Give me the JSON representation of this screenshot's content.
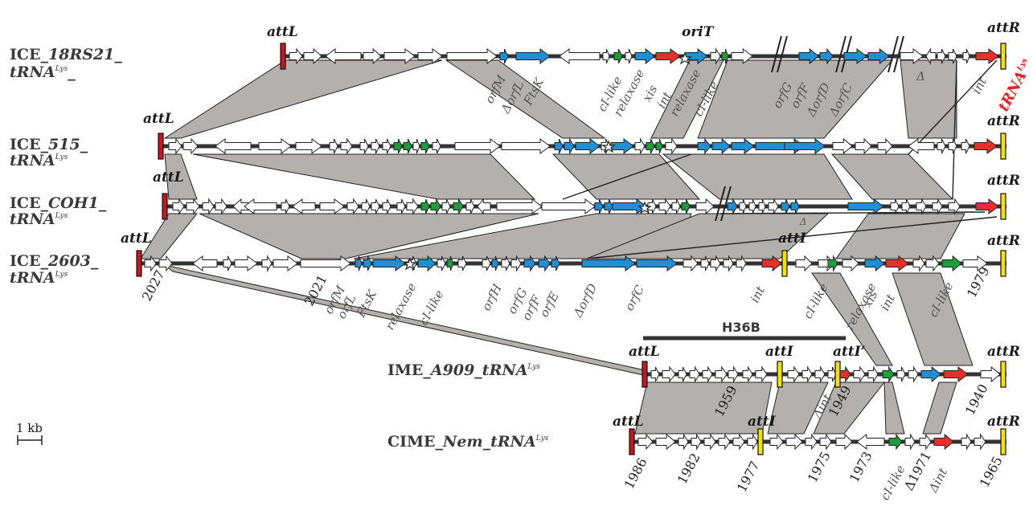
{
  "colors": {
    "blue": "#1f8fd6",
    "red": "#e8302a",
    "green": "#1e9e3a",
    "gray_band": "#b3b0ae",
    "yellow": "#f2e20a",
    "att_red": "#c4171e"
  },
  "elements": [
    {
      "id": "ice18",
      "name": "ICE_",
      "italic": "18RS21",
      "tail": "_",
      "line2": "tRNA",
      "sup": "Lys"
    },
    {
      "id": "ice515",
      "name": "ICE_",
      "italic": "515",
      "tail": "_",
      "line2": "tRNA",
      "sup": "Lys"
    },
    {
      "id": "icecoh1",
      "name": "ICE_",
      "italic": "COH1",
      "tail": "_",
      "line2": "tRNA",
      "sup": "Lys"
    },
    {
      "id": "ice2603",
      "name": "ICE_",
      "italic": "2603",
      "tail": "_",
      "line2": "tRNA",
      "sup": "Lys"
    },
    {
      "id": "imea909",
      "name": "IME_",
      "italic": "A909_tRNA",
      "tail": "",
      "line2": "",
      "sup": "Lys"
    },
    {
      "id": "cimenem",
      "name": "CIME_",
      "italic": "Nem_tRNA",
      "tail": "",
      "line2": "",
      "sup": "Lys"
    }
  ],
  "sites": {
    "attL": "attL",
    "attR": "attR",
    "attI": "attI",
    "attI_prime": "attI’",
    "oriT": "oriT"
  },
  "gene_labels_top": [
    "orfM",
    "ΔorfL",
    "FtsK",
    "cI-like",
    "relaxase",
    "xis",
    "int",
    "relaxase",
    "cI-like",
    "orfG",
    "orfF",
    "ΔorfD",
    "ΔorfC",
    "Δ",
    "int"
  ],
  "trna_red_label": "tRNA",
  "trna_red_sup": "Lys",
  "gene_labels_2603": [
    "orfM",
    "orfL",
    "FtsK",
    "relaxase",
    "cI-like",
    "orfH",
    "orfG",
    "orfF",
    "orfE",
    "ΔorfD",
    "orfC",
    "int",
    "cI-like",
    "relaxase",
    "xis",
    "int",
    "cI-like"
  ],
  "delta_small": "Δ",
  "numbers_2603": [
    "2027",
    "2021",
    "1979"
  ],
  "h36b": "H36B",
  "numbers_a909": [
    "1959",
    "Δint",
    "1949",
    "1940"
  ],
  "numbers_nem": [
    "1986",
    "1982",
    "1977",
    "1975",
    "1973",
    "cI-like",
    "Δ1971",
    "Δint",
    "1965"
  ],
  "scale_label": "1 kb"
}
